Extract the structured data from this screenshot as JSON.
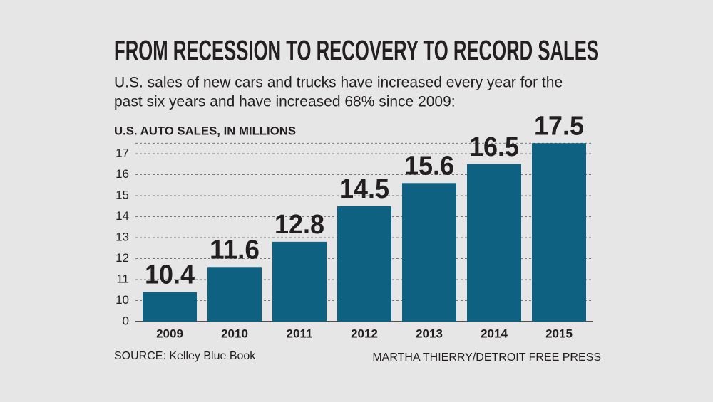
{
  "chart_data": {
    "type": "bar",
    "title": "FROM RECESSION TO RECOVERY TO RECORD SALES",
    "subtitle": [
      "U.S. sales of new cars and trucks have increased every year for the",
      "past six years and have increased 68% since 2009:"
    ],
    "y_label": "U.S. AUTO SALES, IN MILLIONS",
    "categories": [
      "2009",
      "2010",
      "2011",
      "2012",
      "2013",
      "2014",
      "2015"
    ],
    "values": [
      10.4,
      11.6,
      12.8,
      14.5,
      15.6,
      16.5,
      17.5
    ],
    "color": "#0f6182",
    "ylim": [
      0,
      17.5
    ],
    "axis_break": [
      0,
      10
    ],
    "yticks": [
      0,
      10,
      11,
      12,
      13,
      14,
      15,
      16,
      17
    ],
    "grid": true,
    "source": "SOURCE: Kelley Blue Book",
    "credit": "MARTHA THIERRY/DETROIT FREE PRESS"
  }
}
